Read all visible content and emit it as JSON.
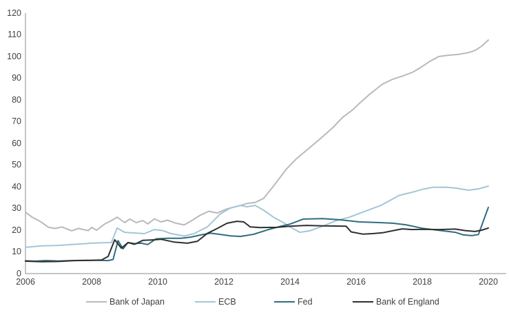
{
  "chart_data": {
    "type": "line",
    "title": "",
    "xlabel": "",
    "ylabel": "",
    "xlim": [
      2006,
      2020
    ],
    "ylim": [
      0,
      120
    ],
    "x_ticks": [
      "2006",
      "2008",
      "2010",
      "2012",
      "2014",
      "2016",
      "2018",
      "2020"
    ],
    "y_ticks": [
      "0",
      "10",
      "20",
      "30",
      "40",
      "50",
      "60",
      "70",
      "80",
      "90",
      "100",
      "110",
      "120"
    ],
    "grid": false,
    "legend_position": "bottom",
    "axis_color": "#8c8c8c",
    "tick_label_color": "#404040",
    "series": [
      {
        "name": "Bank of Japan",
        "color": "#b9b9b9",
        "points": [
          [
            2006.0,
            28.3
          ],
          [
            2006.2,
            26.0
          ],
          [
            2006.45,
            24.0
          ],
          [
            2006.7,
            21.3
          ],
          [
            2006.9,
            20.8
          ],
          [
            2007.1,
            21.5
          ],
          [
            2007.4,
            19.7
          ],
          [
            2007.6,
            20.8
          ],
          [
            2007.9,
            19.8
          ],
          [
            2008.0,
            21.3
          ],
          [
            2008.15,
            20.0
          ],
          [
            2008.4,
            22.9
          ],
          [
            2008.6,
            24.4
          ],
          [
            2008.77,
            26.0
          ],
          [
            2009.0,
            23.5
          ],
          [
            2009.15,
            25.1
          ],
          [
            2009.35,
            23.5
          ],
          [
            2009.55,
            24.4
          ],
          [
            2009.7,
            22.9
          ],
          [
            2009.9,
            25.2
          ],
          [
            2010.1,
            23.8
          ],
          [
            2010.3,
            24.6
          ],
          [
            2010.55,
            23.2
          ],
          [
            2010.8,
            22.4
          ],
          [
            2011.05,
            24.6
          ],
          [
            2011.3,
            27.0
          ],
          [
            2011.55,
            28.7
          ],
          [
            2011.8,
            27.9
          ],
          [
            2012.1,
            29.8
          ],
          [
            2012.4,
            31.0
          ],
          [
            2012.7,
            32.3
          ],
          [
            2012.95,
            32.8
          ],
          [
            2013.2,
            34.6
          ],
          [
            2013.5,
            40.3
          ],
          [
            2013.9,
            48.3
          ],
          [
            2014.2,
            53.0
          ],
          [
            2014.5,
            56.8
          ],
          [
            2014.9,
            61.9
          ],
          [
            2015.3,
            67.3
          ],
          [
            2015.6,
            72.1
          ],
          [
            2015.9,
            75.5
          ],
          [
            2016.1,
            78.4
          ],
          [
            2016.4,
            82.5
          ],
          [
            2016.8,
            87.3
          ],
          [
            2017.1,
            89.5
          ],
          [
            2017.4,
            91.0
          ],
          [
            2017.7,
            92.7
          ],
          [
            2017.95,
            94.9
          ],
          [
            2018.2,
            97.5
          ],
          [
            2018.5,
            100.0
          ],
          [
            2018.8,
            100.6
          ],
          [
            2019.1,
            101.0
          ],
          [
            2019.4,
            101.8
          ],
          [
            2019.6,
            102.8
          ],
          [
            2019.8,
            104.8
          ],
          [
            2020.0,
            107.6
          ]
        ]
      },
      {
        "name": "ECB",
        "color": "#a3c6d6",
        "points": [
          [
            2006.0,
            12.1
          ],
          [
            2006.5,
            12.8
          ],
          [
            2007.0,
            13.0
          ],
          [
            2007.5,
            13.5
          ],
          [
            2008.0,
            14.0
          ],
          [
            2008.3,
            14.2
          ],
          [
            2008.6,
            14.3
          ],
          [
            2008.77,
            21.0
          ],
          [
            2009.0,
            19.0
          ],
          [
            2009.3,
            18.7
          ],
          [
            2009.6,
            18.4
          ],
          [
            2009.9,
            20.3
          ],
          [
            2010.15,
            19.8
          ],
          [
            2010.4,
            18.4
          ],
          [
            2010.8,
            17.3
          ],
          [
            2011.1,
            18.4
          ],
          [
            2011.5,
            21.5
          ],
          [
            2011.9,
            27.6
          ],
          [
            2012.2,
            30.2
          ],
          [
            2012.5,
            31.4
          ],
          [
            2012.7,
            30.8
          ],
          [
            2012.95,
            31.4
          ],
          [
            2013.2,
            29.2
          ],
          [
            2013.5,
            26.0
          ],
          [
            2013.8,
            23.5
          ],
          [
            2014.0,
            21.5
          ],
          [
            2014.3,
            19.0
          ],
          [
            2014.6,
            19.7
          ],
          [
            2015.0,
            21.9
          ],
          [
            2015.4,
            24.4
          ],
          [
            2015.8,
            26.0
          ],
          [
            2016.25,
            28.6
          ],
          [
            2016.75,
            31.4
          ],
          [
            2017.0,
            33.5
          ],
          [
            2017.3,
            36.0
          ],
          [
            2017.7,
            37.5
          ],
          [
            2018.0,
            38.8
          ],
          [
            2018.3,
            39.7
          ],
          [
            2018.7,
            39.8
          ],
          [
            2019.0,
            39.4
          ],
          [
            2019.4,
            38.4
          ],
          [
            2019.7,
            39.0
          ],
          [
            2020.0,
            40.3
          ]
        ]
      },
      {
        "name": "Fed",
        "color": "#2e6d80",
        "points": [
          [
            2006.0,
            5.9
          ],
          [
            2006.3,
            5.7
          ],
          [
            2006.6,
            6.0
          ],
          [
            2007.0,
            5.8
          ],
          [
            2007.4,
            6.0
          ],
          [
            2007.8,
            6.1
          ],
          [
            2008.2,
            6.1
          ],
          [
            2008.5,
            6.0
          ],
          [
            2008.65,
            6.5
          ],
          [
            2008.8,
            15.2
          ],
          [
            2008.95,
            11.4
          ],
          [
            2009.1,
            14.3
          ],
          [
            2009.3,
            13.8
          ],
          [
            2009.5,
            14.0
          ],
          [
            2009.7,
            13.4
          ],
          [
            2009.95,
            16.0
          ],
          [
            2010.3,
            16.3
          ],
          [
            2010.7,
            16.3
          ],
          [
            2011.0,
            16.8
          ],
          [
            2011.3,
            17.8
          ],
          [
            2011.6,
            18.6
          ],
          [
            2011.9,
            18.0
          ],
          [
            2012.2,
            17.4
          ],
          [
            2012.5,
            17.1
          ],
          [
            2012.9,
            18.1
          ],
          [
            2013.35,
            20.3
          ],
          [
            2013.75,
            21.9
          ],
          [
            2014.0,
            22.8
          ],
          [
            2014.4,
            25.1
          ],
          [
            2015.0,
            25.3
          ],
          [
            2015.5,
            24.8
          ],
          [
            2016.1,
            23.8
          ],
          [
            2016.7,
            23.5
          ],
          [
            2017.1,
            23.2
          ],
          [
            2017.5,
            22.5
          ],
          [
            2018.0,
            20.9
          ],
          [
            2018.5,
            19.9
          ],
          [
            2019.0,
            19.0
          ],
          [
            2019.25,
            17.8
          ],
          [
            2019.5,
            17.5
          ],
          [
            2019.7,
            18.0
          ],
          [
            2020.0,
            30.5
          ]
        ]
      },
      {
        "name": "Bank of England",
        "color": "#2e2e2e",
        "points": [
          [
            2006.0,
            5.7
          ],
          [
            2006.5,
            5.5
          ],
          [
            2007.0,
            5.6
          ],
          [
            2007.5,
            6.0
          ],
          [
            2008.0,
            6.1
          ],
          [
            2008.3,
            6.3
          ],
          [
            2008.5,
            7.9
          ],
          [
            2008.7,
            15.6
          ],
          [
            2008.9,
            11.7
          ],
          [
            2009.1,
            14.3
          ],
          [
            2009.3,
            13.5
          ],
          [
            2009.55,
            15.3
          ],
          [
            2009.8,
            15.5
          ],
          [
            2010.1,
            15.8
          ],
          [
            2010.5,
            14.5
          ],
          [
            2010.9,
            14.0
          ],
          [
            2011.2,
            14.9
          ],
          [
            2011.5,
            18.5
          ],
          [
            2011.8,
            20.8
          ],
          [
            2012.1,
            23.2
          ],
          [
            2012.4,
            24.1
          ],
          [
            2012.6,
            23.8
          ],
          [
            2012.8,
            21.5
          ],
          [
            2013.1,
            21.2
          ],
          [
            2013.6,
            21.3
          ],
          [
            2014.0,
            21.8
          ],
          [
            2014.5,
            22.2
          ],
          [
            2015.0,
            22.0
          ],
          [
            2015.4,
            21.9
          ],
          [
            2015.7,
            21.8
          ],
          [
            2015.85,
            19.2
          ],
          [
            2016.2,
            18.2
          ],
          [
            2016.5,
            18.4
          ],
          [
            2016.8,
            18.8
          ],
          [
            2017.1,
            19.7
          ],
          [
            2017.4,
            20.6
          ],
          [
            2017.7,
            20.3
          ],
          [
            2018.0,
            20.4
          ],
          [
            2018.5,
            20.3
          ],
          [
            2019.0,
            20.5
          ],
          [
            2019.3,
            19.8
          ],
          [
            2019.6,
            19.4
          ],
          [
            2019.8,
            20.0
          ],
          [
            2020.0,
            21.0
          ]
        ]
      }
    ]
  }
}
